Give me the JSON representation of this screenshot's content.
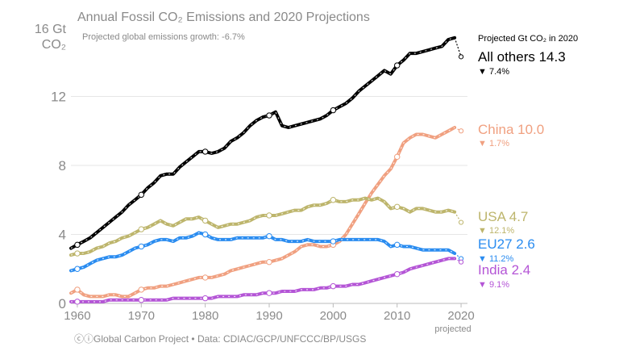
{
  "chart_data": {
    "type": "line",
    "title": "Annual Fossil CO₂ Emissions and 2020 Projections",
    "subtitle": "Projected global emissions growth: -6.7%",
    "ylabel_line1": "16 Gt",
    "ylabel_line2": "CO₂",
    "ylim": [
      0,
      16
    ],
    "xlim": [
      1959,
      2021
    ],
    "yticks": [
      "0",
      "4",
      "8",
      "12"
    ],
    "xticks": [
      "1960",
      "1970",
      "1980",
      "1990",
      "2000",
      "2010",
      "2020"
    ],
    "x_extra_label": "projected",
    "legend_heading": "Projected Gt CO₂ in 2020",
    "x": [
      1959,
      1960,
      1961,
      1962,
      1963,
      1964,
      1965,
      1966,
      1967,
      1968,
      1969,
      1970,
      1971,
      1972,
      1973,
      1974,
      1975,
      1976,
      1977,
      1978,
      1979,
      1980,
      1981,
      1982,
      1983,
      1984,
      1985,
      1986,
      1987,
      1988,
      1989,
      1990,
      1991,
      1992,
      1993,
      1994,
      1995,
      1996,
      1997,
      1998,
      1999,
      2000,
      2001,
      2002,
      2003,
      2004,
      2005,
      2006,
      2007,
      2008,
      2009,
      2010,
      2011,
      2012,
      2013,
      2014,
      2015,
      2016,
      2017,
      2018,
      2019
    ],
    "projection_year": 2020,
    "series": [
      {
        "name": "All others",
        "value": "14.3",
        "change": "7.4%",
        "arrow": "▼",
        "color": "#000000",
        "values": [
          3.2,
          3.4,
          3.6,
          3.8,
          4.1,
          4.4,
          4.7,
          5.0,
          5.3,
          5.7,
          6.0,
          6.3,
          6.7,
          7.0,
          7.4,
          7.5,
          7.5,
          7.9,
          8.2,
          8.5,
          8.8,
          8.8,
          8.7,
          8.8,
          9.0,
          9.4,
          9.6,
          9.9,
          10.3,
          10.6,
          10.8,
          10.9,
          11.1,
          10.3,
          10.2,
          10.3,
          10.4,
          10.5,
          10.6,
          10.7,
          10.9,
          11.2,
          11.4,
          11.6,
          11.9,
          12.3,
          12.6,
          12.9,
          13.2,
          13.5,
          13.3,
          13.8,
          14.1,
          14.5,
          14.5,
          14.6,
          14.7,
          14.8,
          14.9,
          15.3,
          15.4
        ],
        "projection": 14.3
      },
      {
        "name": "China",
        "value": "10.0",
        "change": "1.7%",
        "arrow": "▼",
        "color": "#f0a080",
        "values": [
          0.6,
          0.8,
          0.5,
          0.4,
          0.4,
          0.4,
          0.5,
          0.5,
          0.4,
          0.4,
          0.6,
          0.8,
          0.9,
          0.9,
          1.0,
          1.0,
          1.1,
          1.2,
          1.3,
          1.4,
          1.5,
          1.5,
          1.5,
          1.6,
          1.7,
          1.9,
          2.0,
          2.1,
          2.2,
          2.3,
          2.4,
          2.4,
          2.5,
          2.6,
          2.8,
          3.0,
          3.3,
          3.4,
          3.4,
          3.3,
          3.3,
          3.4,
          3.6,
          4.0,
          4.6,
          5.2,
          5.8,
          6.4,
          6.9,
          7.4,
          7.8,
          8.5,
          9.3,
          9.6,
          9.8,
          9.8,
          9.7,
          9.6,
          9.8,
          10.0,
          10.2
        ],
        "projection": 10.0
      },
      {
        "name": "USA",
        "value": "4.7",
        "change": "12.1%",
        "arrow": "▼",
        "color": "#bdb56c",
        "values": [
          2.8,
          2.9,
          2.9,
          3.0,
          3.2,
          3.3,
          3.5,
          3.6,
          3.8,
          3.9,
          4.1,
          4.3,
          4.4,
          4.6,
          4.8,
          4.6,
          4.5,
          4.7,
          4.9,
          4.9,
          5.0,
          4.8,
          4.6,
          4.4,
          4.5,
          4.6,
          4.6,
          4.7,
          4.8,
          5.0,
          5.1,
          5.1,
          5.1,
          5.2,
          5.3,
          5.4,
          5.4,
          5.6,
          5.7,
          5.7,
          5.8,
          6.0,
          5.9,
          5.9,
          6.0,
          6.0,
          6.1,
          6.0,
          6.1,
          5.9,
          5.5,
          5.6,
          5.5,
          5.3,
          5.5,
          5.5,
          5.4,
          5.3,
          5.3,
          5.4,
          5.3
        ],
        "projection": 4.7
      },
      {
        "name": "EU27",
        "value": "2.6",
        "change": "11.2%",
        "arrow": "▼",
        "color": "#2a8cf0",
        "values": [
          1.9,
          2.0,
          2.1,
          2.3,
          2.5,
          2.6,
          2.7,
          2.7,
          2.8,
          3.0,
          3.2,
          3.3,
          3.4,
          3.6,
          3.7,
          3.7,
          3.6,
          3.8,
          3.8,
          3.9,
          4.1,
          4.0,
          3.8,
          3.7,
          3.7,
          3.7,
          3.8,
          3.8,
          3.8,
          3.8,
          3.8,
          3.9,
          3.7,
          3.7,
          3.6,
          3.6,
          3.6,
          3.7,
          3.6,
          3.6,
          3.6,
          3.6,
          3.7,
          3.7,
          3.7,
          3.7,
          3.7,
          3.7,
          3.7,
          3.6,
          3.3,
          3.4,
          3.3,
          3.3,
          3.2,
          3.1,
          3.1,
          3.1,
          3.1,
          3.1,
          2.9
        ],
        "projection": 2.6
      },
      {
        "name": "India",
        "value": "2.4",
        "change": "9.1%",
        "arrow": "▼",
        "color": "#b455d6",
        "values": [
          0.1,
          0.1,
          0.1,
          0.1,
          0.1,
          0.1,
          0.2,
          0.2,
          0.2,
          0.2,
          0.2,
          0.2,
          0.2,
          0.2,
          0.2,
          0.2,
          0.3,
          0.3,
          0.3,
          0.3,
          0.3,
          0.3,
          0.3,
          0.4,
          0.4,
          0.4,
          0.4,
          0.5,
          0.5,
          0.5,
          0.6,
          0.6,
          0.6,
          0.7,
          0.7,
          0.7,
          0.8,
          0.8,
          0.8,
          0.9,
          0.9,
          1.0,
          1.0,
          1.0,
          1.1,
          1.1,
          1.2,
          1.3,
          1.4,
          1.5,
          1.6,
          1.7,
          1.8,
          2.0,
          2.1,
          2.2,
          2.3,
          2.4,
          2.5,
          2.6,
          2.6
        ],
        "projection": 2.4
      }
    ]
  },
  "footer": {
    "source": "Global Carbon Project",
    "data": "Data: CDIAC/GCP/UNFCCC/BP/USGS"
  }
}
